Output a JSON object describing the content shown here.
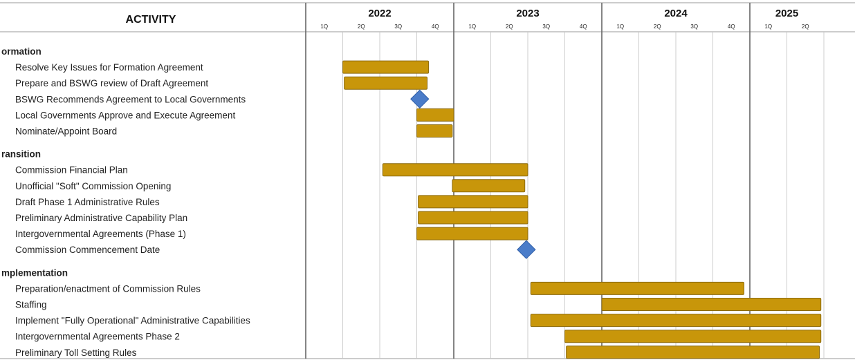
{
  "chart_data": {
    "type": "gantt",
    "activity_header": "ACTIVITY",
    "years": [
      "2022",
      "2023",
      "2024",
      "2025"
    ],
    "quarter_labels": [
      "1Q",
      "2Q",
      "3Q",
      "4Q",
      "1Q",
      "2Q",
      "3Q",
      "4Q",
      "1Q",
      "2Q",
      "3Q",
      "4Q",
      "1Q",
      "2Q"
    ],
    "colors": {
      "bar_fill": "#C8960A",
      "bar_stroke": "#8A6A10",
      "milestone_fill": "#4A7CC9",
      "milestone_stroke": "#2F5EA8",
      "grid": "#C8C8C8",
      "year_divider": "#666666"
    },
    "sections": [
      {
        "name": "ormation",
        "tasks": [
          {
            "label": "Resolve Key Issues for Formation Agreement",
            "kind": "bar",
            "start": 2022.25,
            "end": 2022.83
          },
          {
            "label": "Prepare and BSWG review of Draft Agreement",
            "kind": "bar",
            "start": 2022.26,
            "end": 2022.82
          },
          {
            "label": "BSWG Recommends Agreement to Local Governments",
            "kind": "milestone",
            "at": 2022.77
          },
          {
            "label": "Local Governments Approve and Execute Agreement",
            "kind": "bar",
            "start": 2022.75,
            "end": 2023.0
          },
          {
            "label": "Nominate/Appoint Board",
            "kind": "bar",
            "start": 2022.75,
            "end": 2022.99
          }
        ]
      },
      {
        "name": "ransition",
        "tasks": [
          {
            "label": "Commission Financial Plan",
            "kind": "bar",
            "start": 2022.52,
            "end": 2023.5
          },
          {
            "label": "Unofficial \"Soft\" Commission Opening",
            "kind": "bar",
            "start": 2022.99,
            "end": 2023.48
          },
          {
            "label": "Draft Phase 1 Administrative Rules",
            "kind": "bar",
            "start": 2022.76,
            "end": 2023.5
          },
          {
            "label": "Preliminary Administrative Capability Plan",
            "kind": "bar",
            "start": 2022.76,
            "end": 2023.5
          },
          {
            "label": "Intergovernmental Agreements (Phase 1)",
            "kind": "bar",
            "start": 2022.75,
            "end": 2023.5
          },
          {
            "label": "Commission Commencement Date",
            "kind": "milestone",
            "at": 2023.49
          }
        ]
      },
      {
        "name": "mplementation",
        "tasks": [
          {
            "label": "Preparation/enactment of Commission Rules",
            "kind": "bar",
            "start": 2023.52,
            "end": 2024.96
          },
          {
            "label": "Staffing",
            "kind": "bar",
            "start": 2024.0,
            "end": 2025.48
          },
          {
            "label": "Implement \"Fully Operational\" Administrative Capabilities",
            "kind": "bar",
            "start": 2023.52,
            "end": 2025.48
          },
          {
            "label": "Intergovernmental Agreements Phase 2",
            "kind": "bar",
            "start": 2023.75,
            "end": 2025.48
          },
          {
            "label": "Preliminary Toll Setting Rules",
            "kind": "bar",
            "start": 2023.76,
            "end": 2025.47
          }
        ]
      }
    ]
  }
}
